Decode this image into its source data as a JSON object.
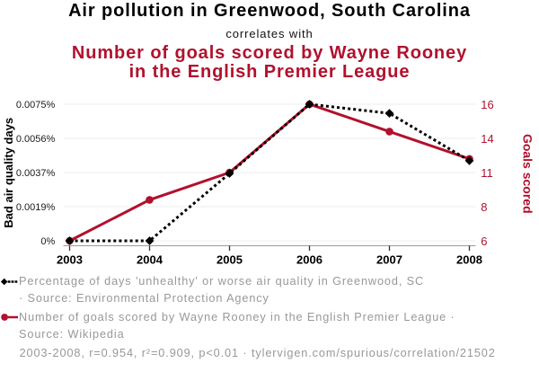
{
  "header": {
    "title_primary": "Air pollution in Greenwood, South Carolina",
    "connector": "correlates with",
    "title_secondary_line1": "Number of goals scored by Wayne Rooney",
    "title_secondary_line2": "in the English Premier League"
  },
  "chart_data": {
    "type": "line",
    "x": [
      2003,
      2004,
      2005,
      2006,
      2007,
      2008
    ],
    "x_tick_labels": [
      "2003",
      "2004",
      "2005",
      "2006",
      "2007",
      "2008"
    ],
    "series": [
      {
        "name": "Percentage of days 'unhealthy' or worse air quality in Greenwood, SC",
        "axis": "left",
        "line_style": "dotted",
        "marker": "diamond",
        "color": "#000000",
        "values": [
          0,
          0,
          0.0037,
          0.0075,
          0.007,
          0.0044
        ]
      },
      {
        "name": "Number of goals scored by Wayne Rooney in the English Premier League",
        "axis": "right",
        "line_style": "solid",
        "marker": "circle",
        "color": "#b1112e",
        "values": [
          6,
          9,
          11,
          16,
          14,
          12
        ]
      }
    ],
    "left_axis": {
      "label": "Bad air quality days",
      "min": 0,
      "max": 0.0075,
      "tick_labels": [
        "0%",
        "0.0019%",
        "0.0037%",
        "0.0056%",
        "0.0075%"
      ]
    },
    "right_axis": {
      "label": "Goals scored",
      "min": 6,
      "max": 16,
      "tick_labels": [
        "6",
        "8",
        "11",
        "14",
        "16"
      ]
    },
    "grid": "horizontal",
    "legend_position": "bottom"
  },
  "legend": {
    "rows": [
      {
        "marker": "black-diamond-dotted-line",
        "line1": "Percentage of days 'unhealthy' or worse air quality in Greenwood, SC",
        "line2": "· Source: Environmental Protection Agency"
      },
      {
        "marker": "red-circle-solid-line",
        "line1": "Number of goals scored by Wayne Rooney in the English Premier League ·",
        "line2": "Source: Wikipedia"
      }
    ]
  },
  "footer": {
    "text": "2003-2008, r=0.954, r²=0.909, p<0.01 · tylervigen.com/spurious/correlation/21502"
  },
  "colors": {
    "accent_red": "#b1112e",
    "series_black": "#000000",
    "grid_line": "#ececec",
    "axis_line": "#9a9a9a",
    "tick_mark": "#333333",
    "tick_label": "#1a1a1a",
    "muted_text": "#989898",
    "title_text": "#000000"
  }
}
